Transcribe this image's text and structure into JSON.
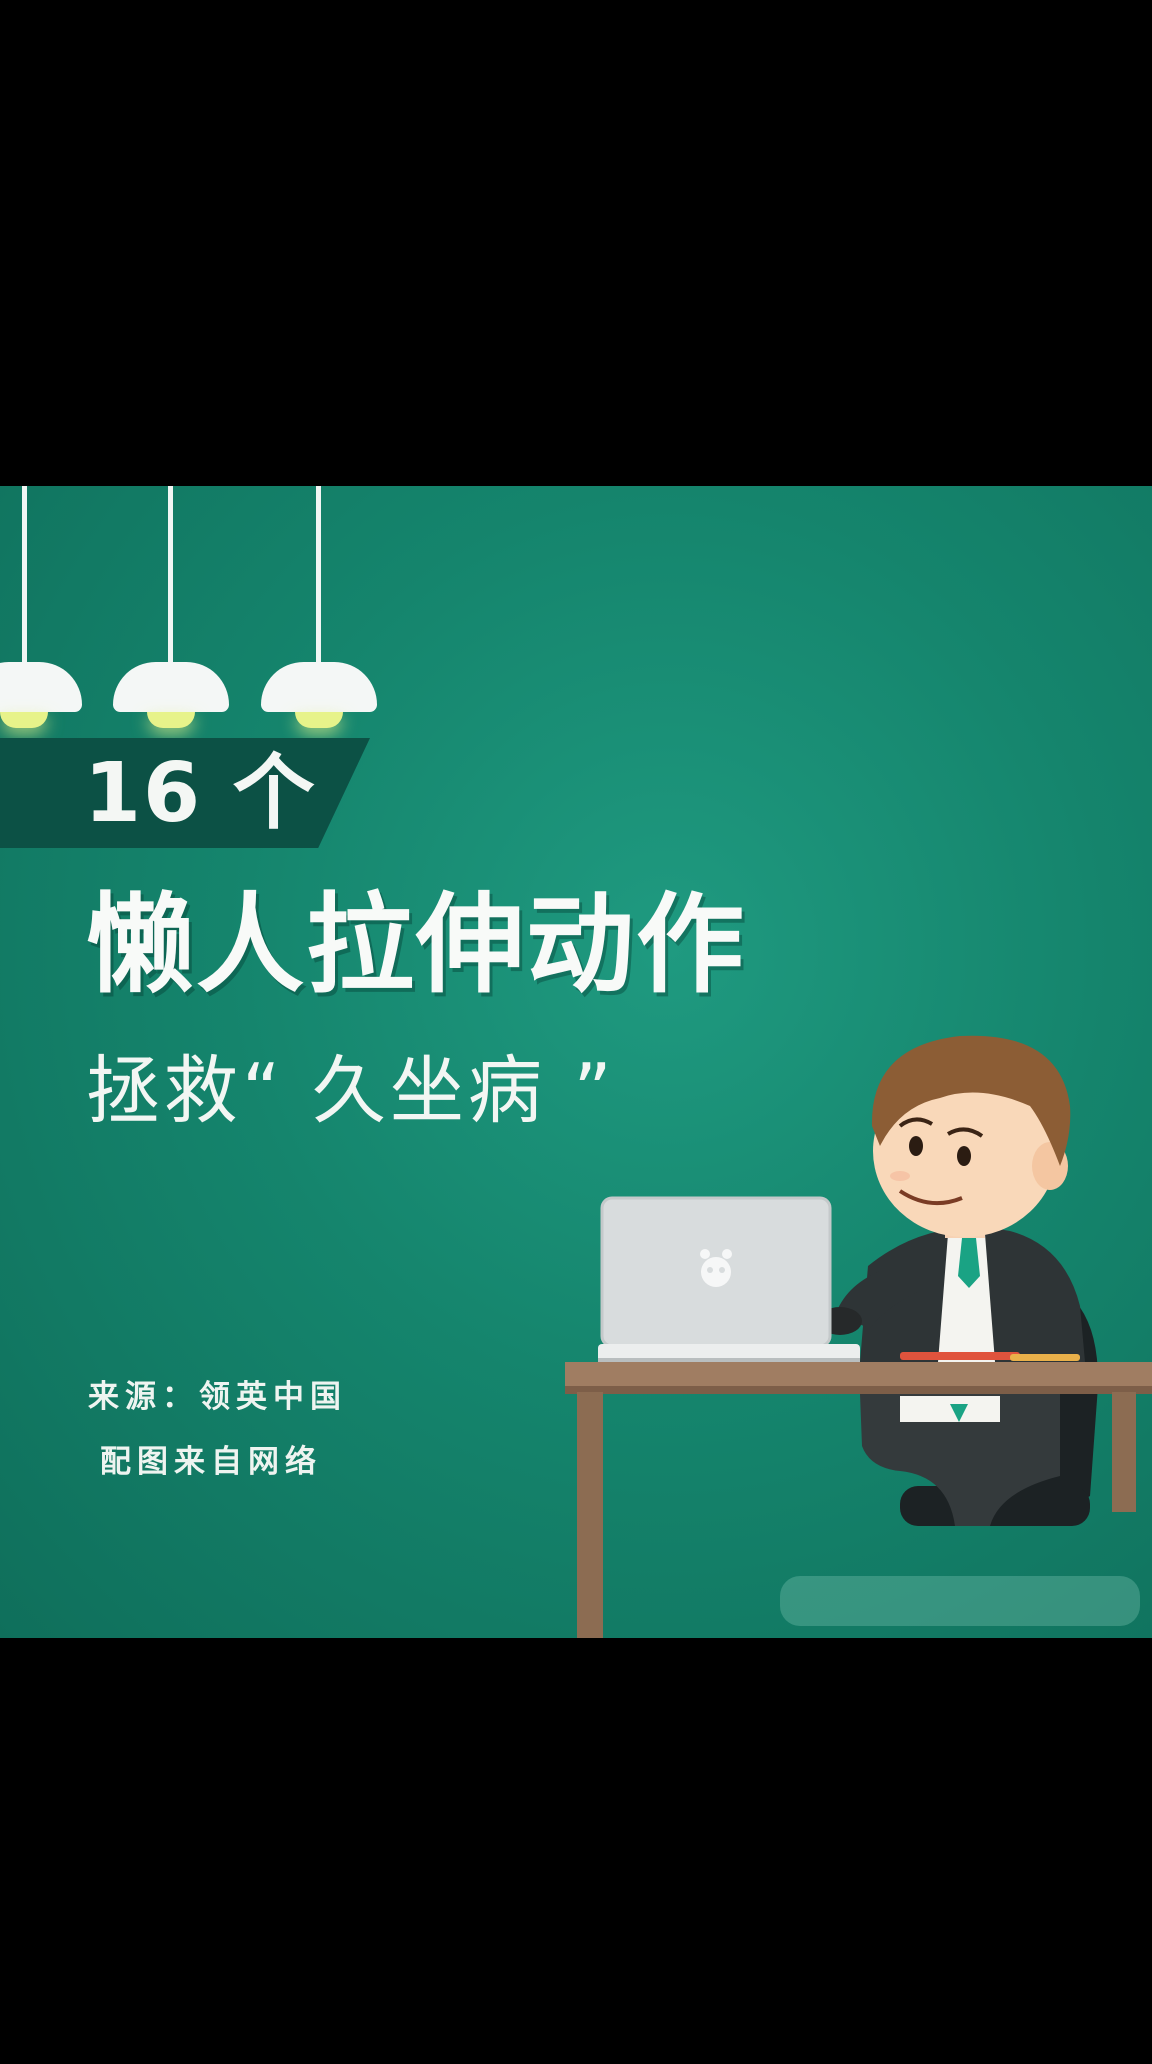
{
  "badge": {
    "text": "16 个"
  },
  "title": {
    "main": "懒人拉伸动作",
    "sub": "拯救“ 久坐病 ”"
  },
  "source": {
    "line1": "来源：领英中国",
    "line2": "配图来自网络"
  },
  "icons": [
    "lamp-icon",
    "laptop-logo-icon"
  ],
  "colors": {
    "background": "#15856d",
    "badge": "#0c5145",
    "text": "#f8faf8",
    "desk": "#a07d62",
    "jacket": "#2e3436",
    "hair": "#8c5d35"
  }
}
